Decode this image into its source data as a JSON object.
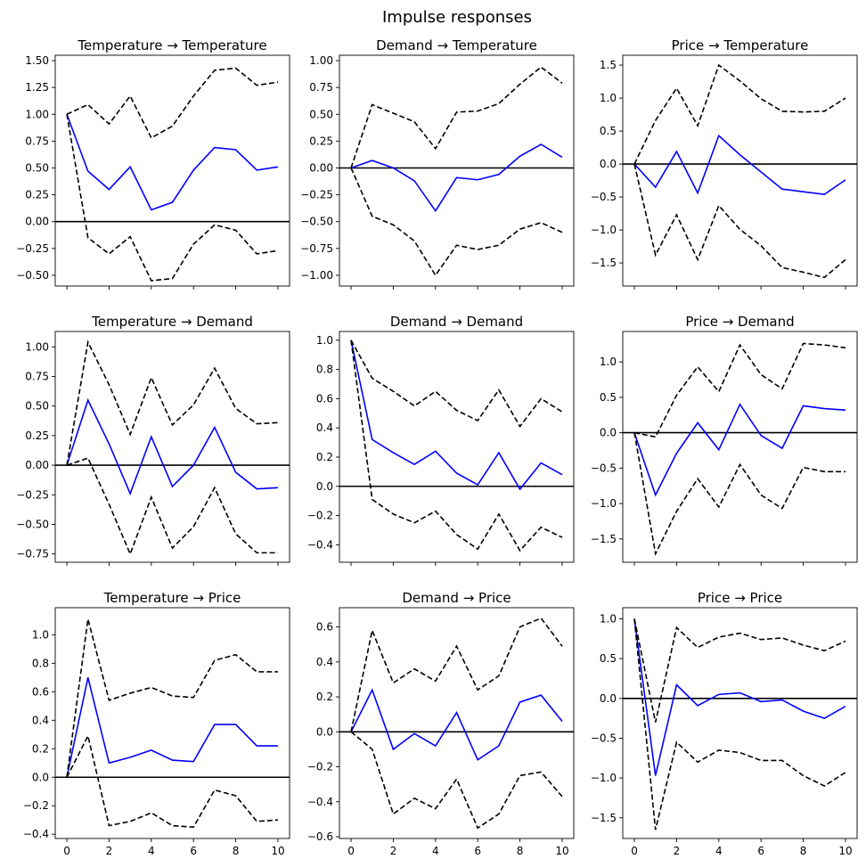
{
  "chart_data": {
    "title": "Impulse responses",
    "type": "line",
    "x": [
      0,
      1,
      2,
      3,
      4,
      5,
      6,
      7,
      8,
      9,
      10
    ],
    "xticks": [
      0,
      2,
      4,
      6,
      8,
      10
    ],
    "colors": {
      "response": "#0000ff",
      "bands": "#000000",
      "zero_line": "#000000"
    },
    "panels": [
      {
        "title": "Temperature → Temperature",
        "ylim": [
          -0.6,
          1.55
        ],
        "yticks": [
          -0.5,
          -0.25,
          0.0,
          0.25,
          0.5,
          0.75,
          1.0,
          1.25,
          1.5
        ],
        "yticklabels": [
          "−0.50",
          "−0.25",
          "0.00",
          "0.25",
          "0.50",
          "0.75",
          "1.00",
          "1.25",
          "1.50"
        ],
        "series": [
          {
            "name": "response",
            "values": [
              1.0,
              0.47,
              0.3,
              0.51,
              0.11,
              0.18,
              0.48,
              0.69,
              0.67,
              0.48,
              0.51
            ]
          },
          {
            "name": "upper",
            "values": [
              1.0,
              1.09,
              0.91,
              1.17,
              0.78,
              0.89,
              1.17,
              1.41,
              1.43,
              1.27,
              1.3
            ]
          },
          {
            "name": "lower",
            "values": [
              1.0,
              -0.15,
              -0.3,
              -0.14,
              -0.55,
              -0.53,
              -0.21,
              -0.03,
              -0.08,
              -0.3,
              -0.27
            ]
          }
        ]
      },
      {
        "title": "Demand → Temperature",
        "ylim": [
          -1.1,
          1.05
        ],
        "yticks": [
          -1.0,
          -0.75,
          -0.5,
          -0.25,
          0.0,
          0.25,
          0.5,
          0.75,
          1.0
        ],
        "yticklabels": [
          "−1.00",
          "−0.75",
          "−0.50",
          "−0.25",
          "0.00",
          "0.25",
          "0.50",
          "0.75",
          "1.00"
        ],
        "series": [
          {
            "name": "response",
            "values": [
              0.0,
              0.07,
              0.0,
              -0.12,
              -0.4,
              -0.09,
              -0.11,
              -0.06,
              0.11,
              0.22,
              0.1
            ]
          },
          {
            "name": "upper",
            "values": [
              0.0,
              0.59,
              0.51,
              0.43,
              0.18,
              0.52,
              0.53,
              0.6,
              0.78,
              0.94,
              0.79
            ]
          },
          {
            "name": "lower",
            "values": [
              0.0,
              -0.45,
              -0.53,
              -0.68,
              -1.0,
              -0.72,
              -0.76,
              -0.72,
              -0.57,
              -0.51,
              -0.6
            ]
          }
        ]
      },
      {
        "title": "Price → Temperature",
        "ylim": [
          -1.85,
          1.65
        ],
        "yticks": [
          -1.5,
          -1.0,
          -0.5,
          0.0,
          0.5,
          1.0,
          1.5
        ],
        "yticklabels": [
          "−1.5",
          "−1.0",
          "−0.5",
          "0.0",
          "0.5",
          "1.0",
          "1.5"
        ],
        "series": [
          {
            "name": "response",
            "values": [
              0.0,
              -0.35,
              0.19,
              -0.44,
              0.43,
              0.14,
              -0.12,
              -0.38,
              -0.42,
              -0.46,
              -0.24
            ]
          },
          {
            "name": "upper",
            "values": [
              0.0,
              0.66,
              1.15,
              0.58,
              1.5,
              1.26,
              0.99,
              0.8,
              0.79,
              0.8,
              1.0
            ]
          },
          {
            "name": "lower",
            "values": [
              0.0,
              -1.38,
              -0.77,
              -1.45,
              -0.63,
              -0.99,
              -1.24,
              -1.57,
              -1.64,
              -1.72,
              -1.45
            ]
          }
        ]
      },
      {
        "title": "Temperature → Demand",
        "ylim": [
          -0.82,
          1.13
        ],
        "yticks": [
          -0.75,
          -0.5,
          -0.25,
          0.0,
          0.25,
          0.5,
          0.75,
          1.0
        ],
        "yticklabels": [
          "−0.75",
          "−0.50",
          "−0.25",
          "0.00",
          "0.25",
          "0.50",
          "0.75",
          "1.00"
        ],
        "series": [
          {
            "name": "response",
            "values": [
              0.0,
              0.55,
              0.18,
              -0.24,
              0.24,
              -0.18,
              0.0,
              0.32,
              -0.06,
              -0.2,
              -0.19
            ]
          },
          {
            "name": "upper",
            "values": [
              0.0,
              1.04,
              0.68,
              0.26,
              0.74,
              0.34,
              0.51,
              0.82,
              0.48,
              0.35,
              0.36
            ]
          },
          {
            "name": "lower",
            "values": [
              0.0,
              0.06,
              -0.33,
              -0.75,
              -0.27,
              -0.7,
              -0.52,
              -0.19,
              -0.58,
              -0.74,
              -0.74
            ]
          }
        ]
      },
      {
        "title": "Demand → Demand",
        "ylim": [
          -0.52,
          1.06
        ],
        "yticks": [
          -0.4,
          -0.2,
          0.0,
          0.2,
          0.4,
          0.6,
          0.8,
          1.0
        ],
        "yticklabels": [
          "−0.4",
          "−0.2",
          "0.0",
          "0.2",
          "0.4",
          "0.6",
          "0.8",
          "1.0"
        ],
        "series": [
          {
            "name": "response",
            "values": [
              1.0,
              0.32,
              0.23,
              0.15,
              0.24,
              0.09,
              0.01,
              0.23,
              -0.02,
              0.16,
              0.08
            ]
          },
          {
            "name": "upper",
            "values": [
              1.0,
              0.74,
              0.65,
              0.55,
              0.65,
              0.52,
              0.45,
              0.66,
              0.41,
              0.6,
              0.51
            ]
          },
          {
            "name": "lower",
            "values": [
              1.0,
              -0.09,
              -0.19,
              -0.25,
              -0.17,
              -0.33,
              -0.43,
              -0.19,
              -0.44,
              -0.28,
              -0.35
            ]
          }
        ]
      },
      {
        "title": "Price → Demand",
        "ylim": [
          -1.83,
          1.43
        ],
        "yticks": [
          -1.5,
          -1.0,
          -0.5,
          0.0,
          0.5,
          1.0
        ],
        "yticklabels": [
          "−1.5",
          "−1.0",
          "−0.5",
          "0.0",
          "0.5",
          "1.0"
        ],
        "series": [
          {
            "name": "response",
            "values": [
              0.0,
              -0.88,
              -0.29,
              0.14,
              -0.24,
              0.4,
              -0.04,
              -0.22,
              0.38,
              0.34,
              0.32
            ]
          },
          {
            "name": "upper",
            "values": [
              0.0,
              -0.06,
              0.53,
              0.93,
              0.58,
              1.24,
              0.82,
              0.62,
              1.26,
              1.24,
              1.2
            ]
          },
          {
            "name": "lower",
            "values": [
              0.0,
              -1.71,
              -1.11,
              -0.65,
              -1.05,
              -0.45,
              -0.88,
              -1.07,
              -0.49,
              -0.55,
              -0.55
            ]
          }
        ]
      },
      {
        "title": "Temperature → Price",
        "ylim": [
          -0.43,
          1.19
        ],
        "yticks": [
          -0.4,
          -0.2,
          0.0,
          0.2,
          0.4,
          0.6,
          0.8,
          1.0
        ],
        "yticklabels": [
          "−0.4",
          "−0.2",
          "0.0",
          "0.2",
          "0.4",
          "0.6",
          "0.8",
          "1.0"
        ],
        "series": [
          {
            "name": "response",
            "values": [
              0.0,
              0.7,
              0.1,
              0.14,
              0.19,
              0.12,
              0.11,
              0.37,
              0.37,
              0.22,
              0.22
            ]
          },
          {
            "name": "upper",
            "values": [
              0.0,
              1.11,
              0.54,
              0.59,
              0.63,
              0.57,
              0.56,
              0.82,
              0.86,
              0.74,
              0.74
            ]
          },
          {
            "name": "lower",
            "values": [
              0.0,
              0.29,
              -0.34,
              -0.31,
              -0.25,
              -0.34,
              -0.35,
              -0.09,
              -0.13,
              -0.31,
              -0.3
            ]
          }
        ]
      },
      {
        "title": "Demand → Price",
        "ylim": [
          -0.61,
          0.71
        ],
        "yticks": [
          -0.6,
          -0.4,
          -0.2,
          0.0,
          0.2,
          0.4,
          0.6
        ],
        "yticklabels": [
          "−0.6",
          "−0.4",
          "−0.2",
          "0.0",
          "0.2",
          "0.4",
          "0.6"
        ],
        "series": [
          {
            "name": "response",
            "values": [
              0.0,
              0.24,
              -0.1,
              -0.01,
              -0.08,
              0.11,
              -0.16,
              -0.08,
              0.17,
              0.21,
              0.06
            ]
          },
          {
            "name": "upper",
            "values": [
              0.0,
              0.58,
              0.28,
              0.36,
              0.29,
              0.49,
              0.24,
              0.32,
              0.6,
              0.65,
              0.49
            ]
          },
          {
            "name": "lower",
            "values": [
              0.0,
              -0.1,
              -0.47,
              -0.38,
              -0.44,
              -0.27,
              -0.55,
              -0.47,
              -0.25,
              -0.23,
              -0.37
            ]
          }
        ]
      },
      {
        "title": "Price → Price",
        "ylim": [
          -1.76,
          1.14
        ],
        "yticks": [
          -1.5,
          -1.0,
          -0.5,
          0.0,
          0.5,
          1.0
        ],
        "yticklabels": [
          "−1.5",
          "−1.0",
          "−0.5",
          "0.0",
          "0.5",
          "1.0"
        ],
        "series": [
          {
            "name": "response",
            "values": [
              1.0,
              -0.97,
              0.17,
              -0.09,
              0.05,
              0.07,
              -0.04,
              -0.02,
              -0.16,
              -0.25,
              -0.1
            ]
          },
          {
            "name": "upper",
            "values": [
              1.0,
              -0.3,
              0.89,
              0.64,
              0.77,
              0.82,
              0.74,
              0.76,
              0.67,
              0.6,
              0.72
            ]
          },
          {
            "name": "lower",
            "values": [
              1.0,
              -1.65,
              -0.55,
              -0.8,
              -0.65,
              -0.68,
              -0.78,
              -0.78,
              -0.97,
              -1.1,
              -0.93
            ]
          }
        ]
      }
    ]
  }
}
